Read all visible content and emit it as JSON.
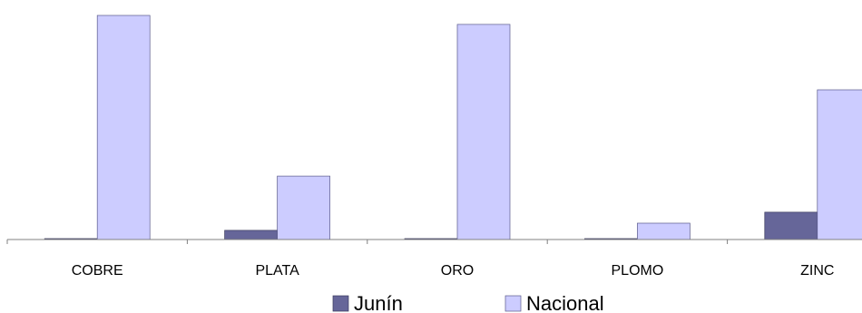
{
  "chart_data": {
    "type": "bar",
    "categories": [
      "COBRE",
      "PLATA",
      "ORO",
      "PLOMO",
      "ZINC"
    ],
    "series": [
      {
        "name": "Junín",
        "color": "#666699",
        "values": [
          0.4,
          4.1,
          0.4,
          0.4,
          12.2
        ]
      },
      {
        "name": "Nacional",
        "color": "#ccccff",
        "values": [
          100,
          28.3,
          96,
          7.3,
          66.8
        ]
      }
    ],
    "ylim": [
      0,
      100
    ],
    "grid": false,
    "legend_position": "bottom"
  }
}
